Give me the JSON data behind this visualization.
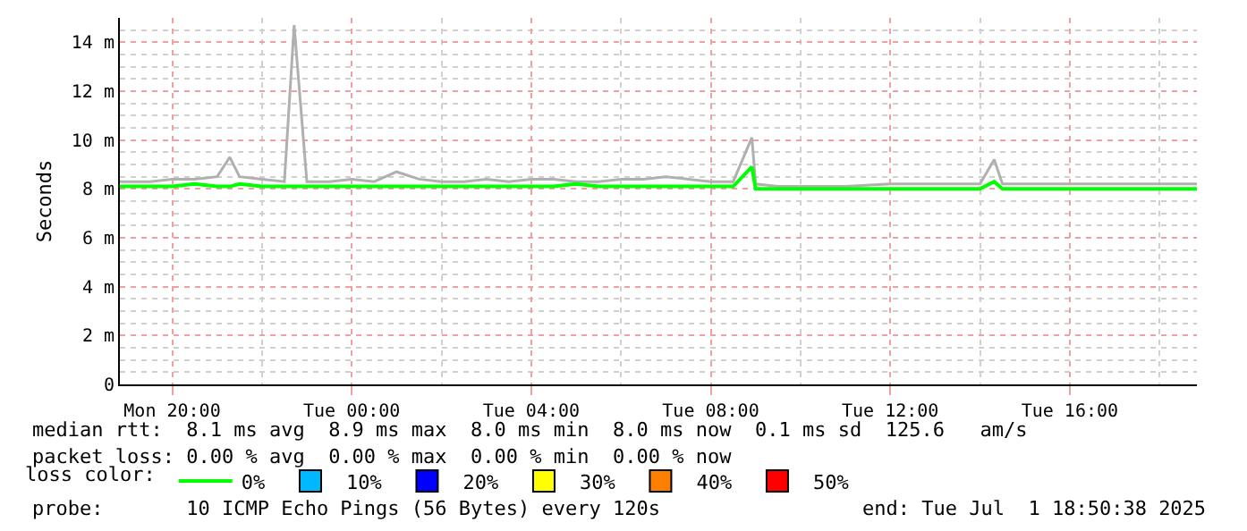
{
  "chart_data": {
    "type": "line",
    "ylabel": "Seconds",
    "x": [
      "2025-06-30T18:50",
      "2025-06-30T19:30",
      "2025-06-30T20:00",
      "2025-06-30T20:30",
      "2025-06-30T21:00",
      "2025-06-30T21:17",
      "2025-06-30T21:30",
      "2025-06-30T22:00",
      "2025-06-30T22:30",
      "2025-06-30T22:43",
      "2025-06-30T23:00",
      "2025-06-30T23:30",
      "2025-07-01T00:00",
      "2025-07-01T00:30",
      "2025-07-01T01:00",
      "2025-07-01T01:30",
      "2025-07-01T02:00",
      "2025-07-01T02:30",
      "2025-07-01T03:00",
      "2025-07-01T03:30",
      "2025-07-01T04:00",
      "2025-07-01T04:30",
      "2025-07-01T05:00",
      "2025-07-01T05:30",
      "2025-07-01T06:00",
      "2025-07-01T06:30",
      "2025-07-01T07:00",
      "2025-07-01T07:30",
      "2025-07-01T08:00",
      "2025-07-01T08:30",
      "2025-07-01T08:55",
      "2025-07-01T09:00",
      "2025-07-01T09:30",
      "2025-07-01T10:00",
      "2025-07-01T11:00",
      "2025-07-01T12:00",
      "2025-07-01T13:00",
      "2025-07-01T14:00",
      "2025-07-01T14:19",
      "2025-07-01T14:30",
      "2025-07-01T15:00",
      "2025-07-01T16:00",
      "2025-07-01T17:00",
      "2025-07-01T18:00",
      "2025-07-01T18:50"
    ],
    "series": [
      {
        "color": "#b0b0b0",
        "values": [
          8.3,
          8.3,
          8.4,
          8.4,
          8.5,
          9.3,
          8.5,
          8.4,
          8.3,
          14.7,
          8.3,
          8.3,
          8.4,
          8.3,
          8.7,
          8.4,
          8.3,
          8.3,
          8.4,
          8.3,
          8.4,
          8.4,
          8.3,
          8.3,
          8.4,
          8.4,
          8.5,
          8.4,
          8.3,
          8.3,
          10.1,
          8.2,
          8.1,
          8.1,
          8.1,
          8.2,
          8.2,
          8.2,
          9.2,
          8.2,
          8.2,
          8.2,
          8.2,
          8.2,
          8.2
        ]
      },
      {
        "name": "0%",
        "color": "#00ff00",
        "values": [
          8.1,
          8.1,
          8.1,
          8.2,
          8.1,
          8.1,
          8.2,
          8.1,
          8.1,
          8.1,
          8.1,
          8.1,
          8.1,
          8.1,
          8.1,
          8.1,
          8.1,
          8.1,
          8.1,
          8.1,
          8.1,
          8.1,
          8.2,
          8.1,
          8.1,
          8.1,
          8.1,
          8.1,
          8.1,
          8.1,
          8.9,
          8.0,
          8.0,
          8.0,
          8.0,
          8.0,
          8.0,
          8.0,
          8.3,
          8.0,
          8.0,
          8.0,
          8.0,
          8.0,
          8.0
        ]
      },
      {
        "name": "10%",
        "color": "#00b8ff",
        "type": "bar",
        "values": [
          null,
          null,
          null,
          null,
          null,
          null,
          null,
          null,
          null,
          null,
          null,
          null,
          null,
          null,
          null,
          null,
          null,
          null,
          null,
          null,
          null,
          null,
          null,
          null,
          null,
          null,
          null,
          null,
          null,
          null,
          null,
          null,
          null,
          null,
          null,
          null,
          null,
          null,
          null,
          null,
          null,
          null,
          null,
          null,
          null
        ]
      },
      {
        "name": "20%",
        "color": "#0000ff",
        "type": "bar",
        "values": [
          null,
          null,
          null,
          null,
          null,
          null,
          null,
          null,
          null,
          null,
          null,
          null,
          null,
          null,
          null,
          null,
          null,
          null,
          null,
          null,
          null,
          null,
          null,
          null,
          null,
          null,
          null,
          null,
          null,
          null,
          null,
          null,
          null,
          null,
          null,
          null,
          null,
          null,
          null,
          null,
          null,
          null,
          null,
          null,
          null
        ]
      },
      {
        "name": "30%",
        "color": "#ffff00",
        "type": "bar",
        "values": [
          null,
          null,
          null,
          null,
          null,
          null,
          null,
          null,
          null,
          null,
          null,
          null,
          null,
          null,
          null,
          null,
          null,
          null,
          null,
          null,
          null,
          null,
          null,
          null,
          null,
          null,
          null,
          null,
          null,
          null,
          null,
          null,
          null,
          null,
          null,
          null,
          null,
          null,
          null,
          null,
          null,
          null,
          null,
          null,
          null
        ]
      },
      {
        "name": "40%",
        "color": "#ff8000",
        "type": "bar",
        "values": [
          null,
          null,
          null,
          null,
          null,
          null,
          null,
          null,
          null,
          null,
          null,
          null,
          null,
          null,
          null,
          null,
          null,
          null,
          null,
          null,
          null,
          null,
          null,
          null,
          null,
          null,
          null,
          null,
          null,
          null,
          null,
          null,
          null,
          null,
          null,
          null,
          null,
          null,
          null,
          null,
          null,
          null,
          null,
          null,
          null
        ]
      },
      {
        "name": "50%",
        "color": "#ff0000",
        "type": "bar",
        "values": [
          null,
          null,
          null,
          null,
          null,
          null,
          null,
          null,
          null,
          null,
          null,
          null,
          null,
          null,
          null,
          null,
          null,
          null,
          null,
          null,
          null,
          null,
          null,
          null,
          null,
          null,
          null,
          null,
          null,
          null,
          null,
          null,
          null,
          null,
          null,
          null,
          null,
          null,
          null,
          null,
          null,
          null,
          null,
          null,
          null
        ]
      }
    ],
    "legend_title": "loss color:",
    "legend": "bottom",
    "xlim": [
      "2025-06-30T18:50",
      "2025-07-01T18:50"
    ],
    "xticks": [
      {
        "value": "2025-06-30T20:00",
        "label": "Mon 20:00"
      },
      {
        "value": "2025-07-01T00:00",
        "label": "Tue 00:00"
      },
      {
        "value": "2025-07-01T04:00",
        "label": "Tue 04:00"
      },
      {
        "value": "2025-07-01T08:00",
        "label": "Tue 08:00"
      },
      {
        "value": "2025-07-01T12:00",
        "label": "Tue 12:00"
      },
      {
        "value": "2025-07-01T16:00",
        "label": "Tue 16:00"
      }
    ],
    "ylim": [
      0,
      15
    ],
    "yticks": [
      0,
      {
        "value": 2,
        "label": "2 m"
      },
      {
        "value": 4,
        "label": "4 m"
      },
      {
        "value": 6,
        "label": "6 m"
      },
      {
        "value": 8,
        "label": "8 m"
      },
      {
        "value": 10,
        "label": "10 m"
      },
      {
        "value": 12,
        "label": "12 m"
      },
      {
        "value": 14,
        "label": "14 m"
      }
    ],
    "grid": true,
    "marker": "none",
    "line_style": "solid",
    "annotations": [
      "median rtt:  8.1 ms avg  8.9 ms max  8.0 ms min  8.0 ms now  0.1 ms sd  125.6   am/s",
      "packet loss: 0.00 % avg  0.00 % max  0.00 % min  0.00 % now",
      "probe:       10 ICMP Echo Pings (56 Bytes) every 120s",
      "end: Tue Jul  1 18:50:38 2025"
    ]
  }
}
